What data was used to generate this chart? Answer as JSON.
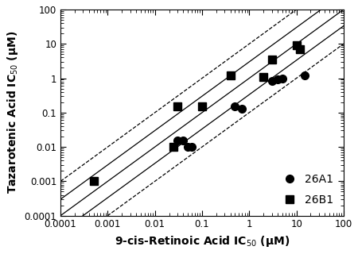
{
  "cyp26a1_x": [
    0.03,
    0.04,
    0.05,
    0.06,
    0.5,
    0.7,
    3,
    4,
    5,
    15
  ],
  "cyp26a1_y": [
    0.015,
    0.015,
    0.01,
    0.01,
    0.15,
    0.13,
    0.85,
    0.9,
    1.0,
    1.2
  ],
  "cyp26b1_x": [
    0.0005,
    0.025,
    0.03,
    0.1,
    0.4,
    2.0,
    3,
    10,
    12
  ],
  "cyp26b1_y": [
    0.001,
    0.01,
    0.15,
    0.15,
    1.2,
    1.1,
    3.5,
    9,
    7
  ],
  "xmin": 0.0001,
  "xmax": 100,
  "ymin": 0.0001,
  "ymax": 100,
  "xlabel": "9-cis-Retinoic Acid IC$_{50}$ (μM)",
  "ylabel": "Tazarotenic Acid IC$_{50}$ (μM)",
  "legend_labels": [
    "26A1",
    "26B1"
  ],
  "marker_size": 7,
  "marker_color": "black",
  "line_color": "black",
  "background_color": "#ffffff"
}
